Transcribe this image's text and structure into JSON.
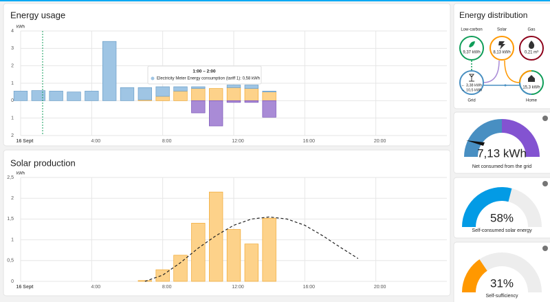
{
  "chart_data": [
    {
      "type": "bar",
      "title": "Energy usage",
      "y_label": "kWh",
      "ylim": [
        -2,
        4
      ],
      "yticks": [
        {
          "value": -2,
          "label": "2"
        },
        {
          "value": -1,
          "label": "1"
        },
        0,
        1,
        2,
        3,
        4
      ],
      "xlim": [
        0,
        24
      ],
      "xticks": [
        {
          "value": 0,
          "label": "16 Sept"
        },
        {
          "value": 4,
          "label": "4:00"
        },
        {
          "value": 8,
          "label": "8:00"
        },
        {
          "value": 12,
          "label": "12:00"
        },
        {
          "value": 16,
          "label": "16:00"
        },
        {
          "value": 20,
          "label": "20:00"
        }
      ],
      "grid": true,
      "x": [
        0,
        1,
        2,
        3,
        4,
        5,
        6,
        7,
        8,
        9,
        10,
        11,
        12,
        13,
        14
      ],
      "series": [
        {
          "color": "#fdd28a",
          "values": [
            0,
            0,
            0,
            0,
            0,
            0,
            0,
            0.05,
            0.25,
            0.55,
            0.7,
            0.7,
            0.75,
            0.7,
            0.5
          ]
        },
        {
          "color": "#9fc5e4",
          "values": [
            0.55,
            0.58,
            0.55,
            0.5,
            0.55,
            3.4,
            0.75,
            0.7,
            0.55,
            0.25,
            0.1,
            0,
            0.15,
            0.2,
            0.05
          ]
        },
        {
          "color": "#a98bd6",
          "values": [
            0,
            0,
            0,
            0,
            0,
            0,
            0,
            0,
            0,
            0,
            -0.7,
            -1.45,
            -0.1,
            -0.1,
            -0.95
          ]
        }
      ],
      "tooltip": {
        "title": "1:00 – 2:00",
        "text": "Electricity Meter Energy consumption (tariff 1): 0,58 kWh"
      }
    },
    {
      "type": "bar",
      "title": "Solar production",
      "y_label": "kWh",
      "ylim": [
        0,
        2.5
      ],
      "yticks": [
        0,
        {
          "value": 0.5,
          "label": "0,5"
        },
        1,
        {
          "value": 1.5,
          "label": "1,5"
        },
        2,
        {
          "value": 2.5,
          "label": "2,5"
        }
      ],
      "xlim": [
        0,
        24
      ],
      "xticks": [
        {
          "value": 0,
          "label": "16 Sept"
        },
        {
          "value": 4,
          "label": "4:00"
        },
        {
          "value": 8,
          "label": "8:00"
        },
        {
          "value": 12,
          "label": "12:00"
        },
        {
          "value": 16,
          "label": "16:00"
        },
        {
          "value": 20,
          "label": "20:00"
        }
      ],
      "grid": true,
      "series": [
        {
          "color": "#fdd28a",
          "x": [
            7,
            8,
            9,
            10,
            11,
            12,
            13,
            14
          ],
          "values": [
            0.02,
            0.28,
            0.63,
            1.4,
            2.15,
            1.25,
            0.9,
            1.52
          ]
        },
        {
          "type": "line",
          "dashed": true,
          "color": "#222222",
          "x": [
            7,
            8,
            9,
            10,
            11,
            12,
            13,
            14,
            15,
            16,
            17,
            18,
            19
          ],
          "values": [
            0,
            0.15,
            0.45,
            0.8,
            1.1,
            1.35,
            1.5,
            1.55,
            1.5,
            1.35,
            1.1,
            0.82,
            0.55
          ]
        }
      ]
    }
  ],
  "energy_distribution": {
    "title": "Energy distribution",
    "low_carbon": {
      "label": "Low-carbon",
      "value": "9,37 kWh"
    },
    "solar": {
      "label": "Solar",
      "value": "8,13 kWh"
    },
    "gas": {
      "label": "Gas",
      "value": "0,21 m³"
    },
    "grid": {
      "label": "Grid",
      "values": [
        "← 3,38 kWh",
        "→ 10,5 kWh"
      ]
    },
    "home": {
      "label": "Home",
      "value": "15,3 kWh"
    }
  },
  "gauges": [
    {
      "value_label": "7,13 kWh",
      "label": "Net consumed from the grid"
    },
    {
      "value": 58,
      "value_label": "58%",
      "label": "Self-consumed solar energy",
      "color": "#039be5"
    },
    {
      "value": 31,
      "value_label": "31%",
      "label": "Self-sufficiency",
      "color": "#ff9800"
    }
  ]
}
